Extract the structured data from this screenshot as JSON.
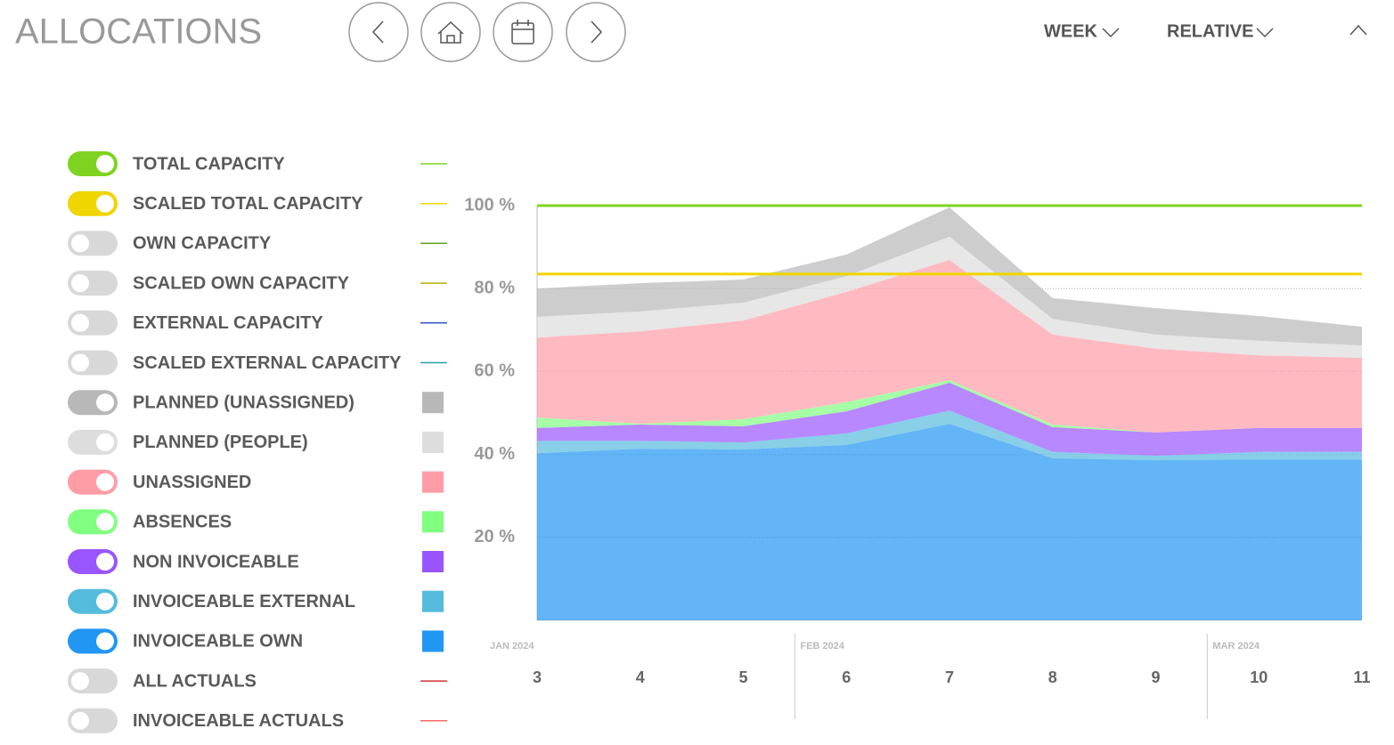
{
  "header": {
    "title": "ALLOCATIONS",
    "period": "WEEK",
    "mode": "RELATIVE"
  },
  "chart_data": {
    "type": "area",
    "categories": [
      "3",
      "4",
      "5",
      "6",
      "7",
      "8",
      "9",
      "10",
      "11"
    ],
    "months": [
      "JAN 2024",
      "FEB 2024",
      "MAR 2024"
    ],
    "ylim": [
      0,
      100
    ],
    "yticks": [
      {
        "value": 20,
        "label": "20 %"
      },
      {
        "value": 40,
        "label": "40 %"
      },
      {
        "value": 60,
        "label": "60 %"
      },
      {
        "value": 80,
        "label": "80 %"
      },
      {
        "value": 100,
        "label": "100 %"
      }
    ],
    "grid": true,
    "series": [
      {
        "name": "TOTAL CAPACITY",
        "kind": "line",
        "enabled": true,
        "color": "#7ed321",
        "values": [
          100,
          100,
          100,
          100,
          100,
          100,
          100,
          100,
          100
        ]
      },
      {
        "name": "SCALED TOTAL CAPACITY",
        "kind": "line",
        "enabled": true,
        "color": "#f0d500",
        "values": [
          83.5,
          83.5,
          83.5,
          83.5,
          83.5,
          83.5,
          83.5,
          83.5,
          83.5
        ]
      },
      {
        "name": "OWN CAPACITY",
        "kind": "line",
        "enabled": false,
        "color": "#5aa01a"
      },
      {
        "name": "SCALED OWN CAPACITY",
        "kind": "line",
        "enabled": false,
        "color": "#b5b000"
      },
      {
        "name": "EXTERNAL CAPACITY",
        "kind": "line",
        "enabled": false,
        "color": "#3355cc"
      },
      {
        "name": "SCALED EXTERNAL CAPACITY",
        "kind": "line",
        "enabled": false,
        "color": "#2aa0b0"
      },
      {
        "name": "PLANNED (UNASSIGNED)",
        "kind": "area",
        "enabled": true,
        "color": "#b8b8b8",
        "values": [
          6.8,
          6.8,
          5.6,
          5.2,
          7.1,
          5.0,
          6.4,
          6.0,
          4.5
        ]
      },
      {
        "name": "PLANNED (PEOPLE)",
        "kind": "area",
        "enabled": true,
        "color": "#dddddd",
        "values": [
          5.0,
          4.8,
          4.3,
          3.8,
          5.6,
          3.8,
          3.4,
          3.5,
          3.0
        ]
      },
      {
        "name": "UNASSIGNED",
        "kind": "area",
        "enabled": true,
        "color": "#ff9da6",
        "values": [
          19.3,
          22.3,
          23.8,
          26.6,
          29.0,
          21.7,
          20.2,
          17.5,
          16.9
        ]
      },
      {
        "name": "ABSENCES",
        "kind": "area",
        "enabled": true,
        "color": "#80ff80",
        "values": [
          2.5,
          0.2,
          1.7,
          2.2,
          0.6,
          0.6,
          0,
          0,
          0
        ]
      },
      {
        "name": "NON INVOICEABLE",
        "kind": "area",
        "enabled": true,
        "color": "#9955ff",
        "values": [
          3.1,
          3.9,
          3.9,
          5.3,
          6.7,
          6.0,
          5.6,
          5.8,
          5.8
        ]
      },
      {
        "name": "INVOICEABLE EXTERNAL",
        "kind": "area",
        "enabled": true,
        "color": "#55bbdd",
        "values": [
          3.0,
          1.9,
          1.7,
          2.8,
          3.2,
          1.5,
          1.1,
          1.8,
          1.8
        ]
      },
      {
        "name": "INVOICEABLE OWN",
        "kind": "area",
        "enabled": true,
        "color": "#2196f3",
        "values": [
          40.3,
          41.4,
          41.2,
          42.3,
          47.4,
          39.1,
          38.6,
          38.8,
          38.8
        ]
      },
      {
        "name": "ALL ACTUALS",
        "kind": "line",
        "enabled": false,
        "color": "#d33333"
      },
      {
        "name": "INVOICEABLE ACTUALS",
        "kind": "line",
        "enabled": false,
        "color": "#ff6666"
      }
    ]
  }
}
